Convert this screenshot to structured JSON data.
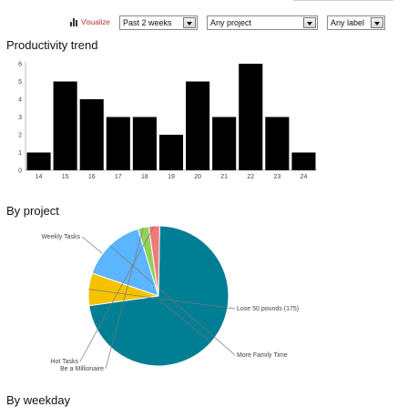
{
  "toolbar": {
    "visualize_label": "Visualize",
    "period_select": "Past 2 weeks",
    "project_select": "Any project",
    "label_select": "Any label"
  },
  "sections": {
    "productivity_trend": "Productivity trend",
    "by_project": "By project",
    "by_weekday": "By weekday"
  },
  "chart_data": [
    {
      "type": "bar",
      "title": "Productivity trend",
      "categories": [
        "14",
        "15",
        "16",
        "17",
        "18",
        "19",
        "20",
        "21",
        "22",
        "23",
        "24"
      ],
      "values": [
        1,
        5,
        4,
        3,
        3,
        2,
        5,
        3,
        6,
        3,
        1
      ],
      "ylim": [
        0,
        6
      ],
      "yticks": [
        0,
        1,
        2,
        3,
        4,
        5,
        6
      ],
      "grid": false,
      "bar_color": "#000000"
    },
    {
      "type": "pie",
      "title": "By project",
      "slices": [
        {
          "label": "Weekly Tasks",
          "value": 72.5,
          "color": "#007e93"
        },
        {
          "label": "Lose 50 pounds (175)",
          "value": 7.5,
          "color": "#f6c200"
        },
        {
          "label": "More Family Time",
          "value": 15.0,
          "color": "#5bb5ff"
        },
        {
          "label": "Be a Millionaire",
          "value": 2.5,
          "color": "#92d05c"
        },
        {
          "label": "Hot Tasks",
          "value": 2.5,
          "color": "#f07a7a"
        }
      ]
    }
  ]
}
